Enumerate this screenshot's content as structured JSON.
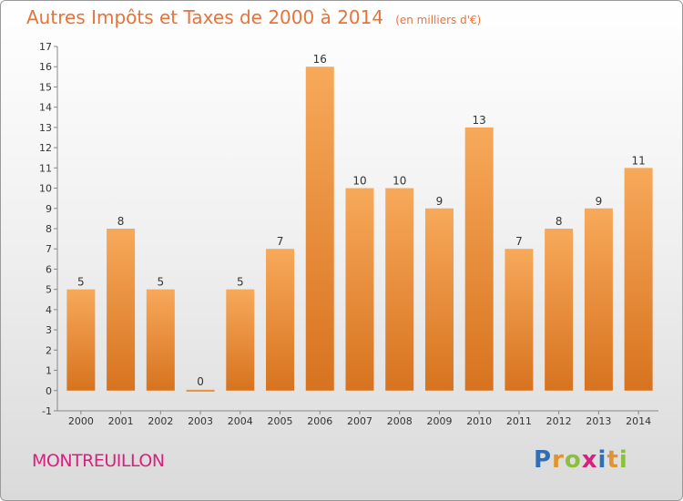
{
  "chart_data": {
    "type": "bar",
    "title": "Autres Impôts et Taxes de 2000 à 2014",
    "subtitle": "(en milliers d'€)",
    "xlabel": "",
    "ylabel": "",
    "categories": [
      "2000",
      "2001",
      "2002",
      "2003",
      "2004",
      "2005",
      "2006",
      "2007",
      "2008",
      "2009",
      "2010",
      "2011",
      "2012",
      "2013",
      "2014"
    ],
    "values": [
      5,
      8,
      5,
      0,
      5,
      7,
      16,
      10,
      10,
      9,
      13,
      7,
      8,
      9,
      11
    ],
    "ylim": [
      -1,
      17
    ],
    "yticks": [
      -1,
      0,
      1,
      2,
      3,
      4,
      5,
      6,
      7,
      8,
      9,
      10,
      11,
      12,
      13,
      14,
      15,
      16,
      17
    ],
    "grid": false,
    "bar_color_top": "#f7a95a",
    "bar_color_bottom": "#d7731f"
  },
  "footer": {
    "commune": "MONTREUILLON",
    "brand_letters": [
      "P",
      "r",
      "o",
      "x",
      "i",
      "t",
      "i"
    ],
    "brand_colors": [
      "#2f6fb5",
      "#e2932b",
      "#8cbf3f",
      "#d8207e",
      "#2f6fb5",
      "#e2932b",
      "#8cbf3f"
    ]
  }
}
